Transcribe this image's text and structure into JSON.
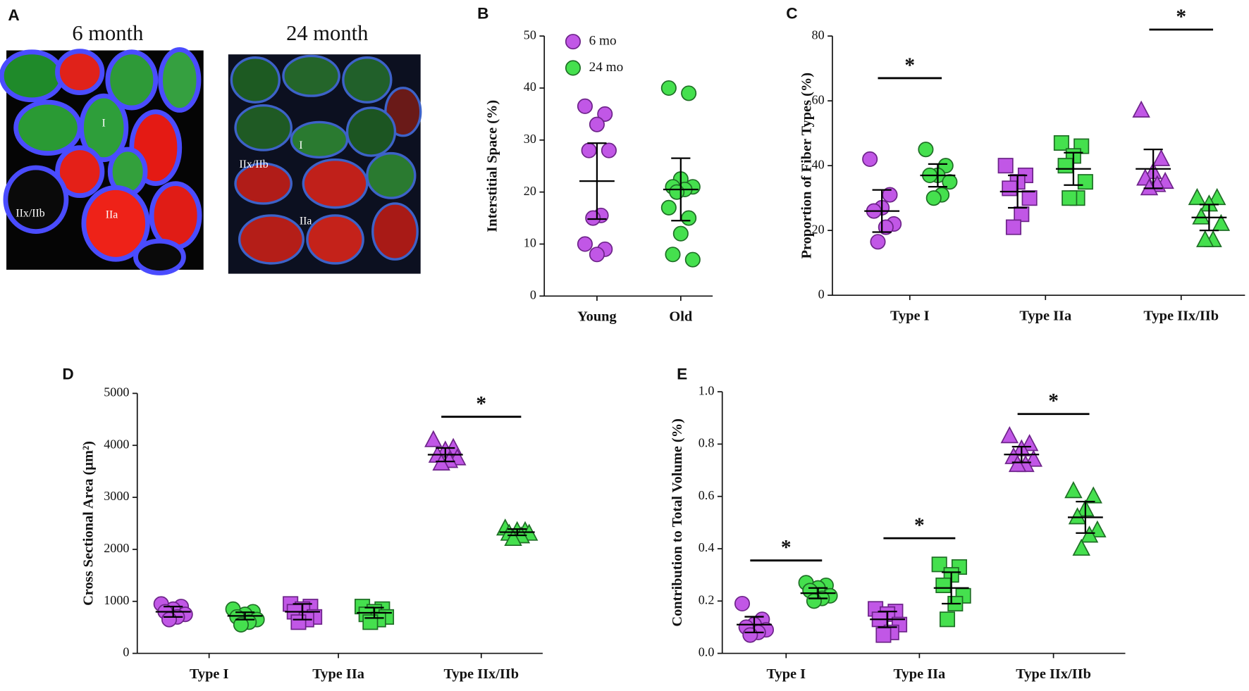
{
  "panel_a": {
    "letter": "A",
    "images": [
      {
        "title": "6 month",
        "labels": [
          "I",
          "IIx/IIb",
          "IIa"
        ]
      },
      {
        "title": "24 month",
        "labels": [
          "I",
          "IIx/IIb",
          "IIa"
        ]
      }
    ]
  },
  "chart_data": [
    {
      "letter": "B",
      "type": "scatter",
      "ylabel": "Interstitial Space (%)",
      "categories": [
        "Young",
        "Old"
      ],
      "ylim": [
        0,
        50
      ],
      "yticks": [
        0,
        10,
        20,
        30,
        40,
        50
      ],
      "legend": [
        {
          "name": "6 mo",
          "color": "#c157e6"
        },
        {
          "name": "24 mo",
          "color": "#45e04e"
        }
      ],
      "groups": [
        {
          "category": 0,
          "color": "#c157e6",
          "marker": "circle",
          "points": [
            36.5,
            35,
            33,
            28,
            28,
            15.5,
            15,
            10,
            9,
            8
          ],
          "mean": 22.1,
          "error": 7.3
        },
        {
          "category": 1,
          "color": "#45e04e",
          "marker": "circle",
          "points": [
            40,
            39,
            22.5,
            21,
            21,
            20.5,
            20,
            17,
            15,
            12,
            8,
            7
          ],
          "mean": 20.5,
          "error": 6
        }
      ],
      "significance": []
    },
    {
      "letter": "C",
      "type": "scatter",
      "ylabel": "Proportion of Fiber Types (%)",
      "categories": [
        "Type I",
        "Type IIa",
        "Type IIx/IIb"
      ],
      "ylim": [
        0,
        80
      ],
      "yticks": [
        0,
        20,
        40,
        60,
        80
      ],
      "groups": [
        {
          "category": 0,
          "color": "#c157e6",
          "marker": "circle",
          "points": [
            42,
            31,
            27,
            26,
            22,
            21,
            16.5
          ],
          "mean": 26,
          "error": 6.5
        },
        {
          "category": 0,
          "color": "#45e04e",
          "marker": "circle",
          "points": [
            45,
            40,
            37,
            37,
            35,
            31,
            30
          ],
          "mean": 37,
          "error": 3.5
        },
        {
          "category": 1,
          "color": "#c157e6",
          "marker": "square",
          "points": [
            40,
            37,
            35,
            33,
            30,
            25,
            21
          ],
          "mean": 32,
          "error": 5
        },
        {
          "category": 1,
          "color": "#45e04e",
          "marker": "square",
          "points": [
            47,
            46,
            43,
            40,
            35,
            30,
            30
          ],
          "mean": 39,
          "error": 5
        },
        {
          "category": 2,
          "color": "#c157e6",
          "marker": "triangle",
          "points": [
            57,
            42,
            38,
            36,
            35,
            34,
            33
          ],
          "mean": 39,
          "error": 6
        },
        {
          "category": 2,
          "color": "#45e04e",
          "marker": "triangle",
          "points": [
            30,
            30,
            28,
            24,
            22,
            17,
            17
          ],
          "mean": 24,
          "error": 4
        }
      ],
      "significance": [
        {
          "from": 0,
          "to": 1,
          "y": 67,
          "label": "*"
        },
        {
          "from": 4,
          "to": 5,
          "y": 82,
          "label": "*"
        }
      ]
    },
    {
      "letter": "D",
      "type": "scatter",
      "ylabel": "Cross Sectional Area (µm²)",
      "categories": [
        "Type I",
        "Type IIa",
        "Type IIx/IIb"
      ],
      "ylim": [
        0,
        5000
      ],
      "yticks": [
        0,
        1000,
        2000,
        3000,
        4000,
        5000
      ],
      "groups": [
        {
          "category": 0,
          "color": "#c157e6",
          "marker": "circle",
          "points": [
            950,
            900,
            850,
            800,
            750,
            700,
            650
          ],
          "mean": 800,
          "error": 100
        },
        {
          "category": 0,
          "color": "#45e04e",
          "marker": "circle",
          "points": [
            850,
            800,
            750,
            700,
            650,
            600,
            550
          ],
          "mean": 720,
          "error": 70
        },
        {
          "category": 1,
          "color": "#c157e6",
          "marker": "square",
          "points": [
            950,
            900,
            850,
            800,
            700,
            650,
            600
          ],
          "mean": 800,
          "error": 150
        },
        {
          "category": 1,
          "color": "#45e04e",
          "marker": "square",
          "points": [
            900,
            850,
            800,
            750,
            700,
            650,
            600
          ],
          "mean": 780,
          "error": 100
        },
        {
          "category": 2,
          "color": "#c157e6",
          "marker": "triangle",
          "points": [
            4100,
            3950,
            3900,
            3800,
            3750,
            3700,
            3650
          ],
          "mean": 3820,
          "error": 130
        },
        {
          "category": 2,
          "color": "#45e04e",
          "marker": "triangle",
          "points": [
            2400,
            2350,
            2350,
            2300,
            2300,
            2250,
            2200
          ],
          "mean": 2330,
          "error": 60
        }
      ],
      "significance": [
        {
          "from": 4,
          "to": 5,
          "y": 4550,
          "label": "*"
        }
      ]
    },
    {
      "letter": "E",
      "type": "scatter",
      "ylabel": "Contribution to Total Volume (%)",
      "categories": [
        "Type I",
        "Type IIa",
        "Type IIx/IIb"
      ],
      "ylim": [
        0,
        1
      ],
      "yticks": [
        {
          "value": 0,
          "label": "0.0"
        },
        0.2,
        0.4,
        0.6,
        0.8,
        {
          "value": 1,
          "label": "1.0"
        }
      ],
      "groups": [
        {
          "category": 0,
          "color": "#c157e6",
          "marker": "circle",
          "points": [
            0.19,
            0.13,
            0.11,
            0.1,
            0.09,
            0.08,
            0.07
          ],
          "mean": 0.11,
          "error": 0.03
        },
        {
          "category": 0,
          "color": "#45e04e",
          "marker": "circle",
          "points": [
            0.27,
            0.26,
            0.25,
            0.24,
            0.22,
            0.21,
            0.2
          ],
          "mean": 0.23,
          "error": 0.02
        },
        {
          "category": 1,
          "color": "#c157e6",
          "marker": "square",
          "points": [
            0.17,
            0.16,
            0.15,
            0.13,
            0.11,
            0.08,
            0.07
          ],
          "mean": 0.13,
          "error": 0.03
        },
        {
          "category": 1,
          "color": "#45e04e",
          "marker": "square",
          "points": [
            0.34,
            0.33,
            0.3,
            0.26,
            0.22,
            0.19,
            0.13
          ],
          "mean": 0.25,
          "error": 0.06
        },
        {
          "category": 2,
          "color": "#c157e6",
          "marker": "triangle",
          "points": [
            0.83,
            0.8,
            0.78,
            0.75,
            0.74,
            0.72,
            0.72
          ],
          "mean": 0.76,
          "error": 0.03
        },
        {
          "category": 2,
          "color": "#45e04e",
          "marker": "triangle",
          "points": [
            0.62,
            0.6,
            0.55,
            0.52,
            0.47,
            0.45,
            0.4
          ],
          "mean": 0.52,
          "error": 0.06
        }
      ],
      "significance": [
        {
          "from": 0,
          "to": 1,
          "y": 0.355,
          "label": "*"
        },
        {
          "from": 2,
          "to": 3,
          "y": 0.44,
          "label": "*"
        },
        {
          "from": 4,
          "to": 5,
          "y": 0.915,
          "label": "*"
        }
      ]
    }
  ]
}
